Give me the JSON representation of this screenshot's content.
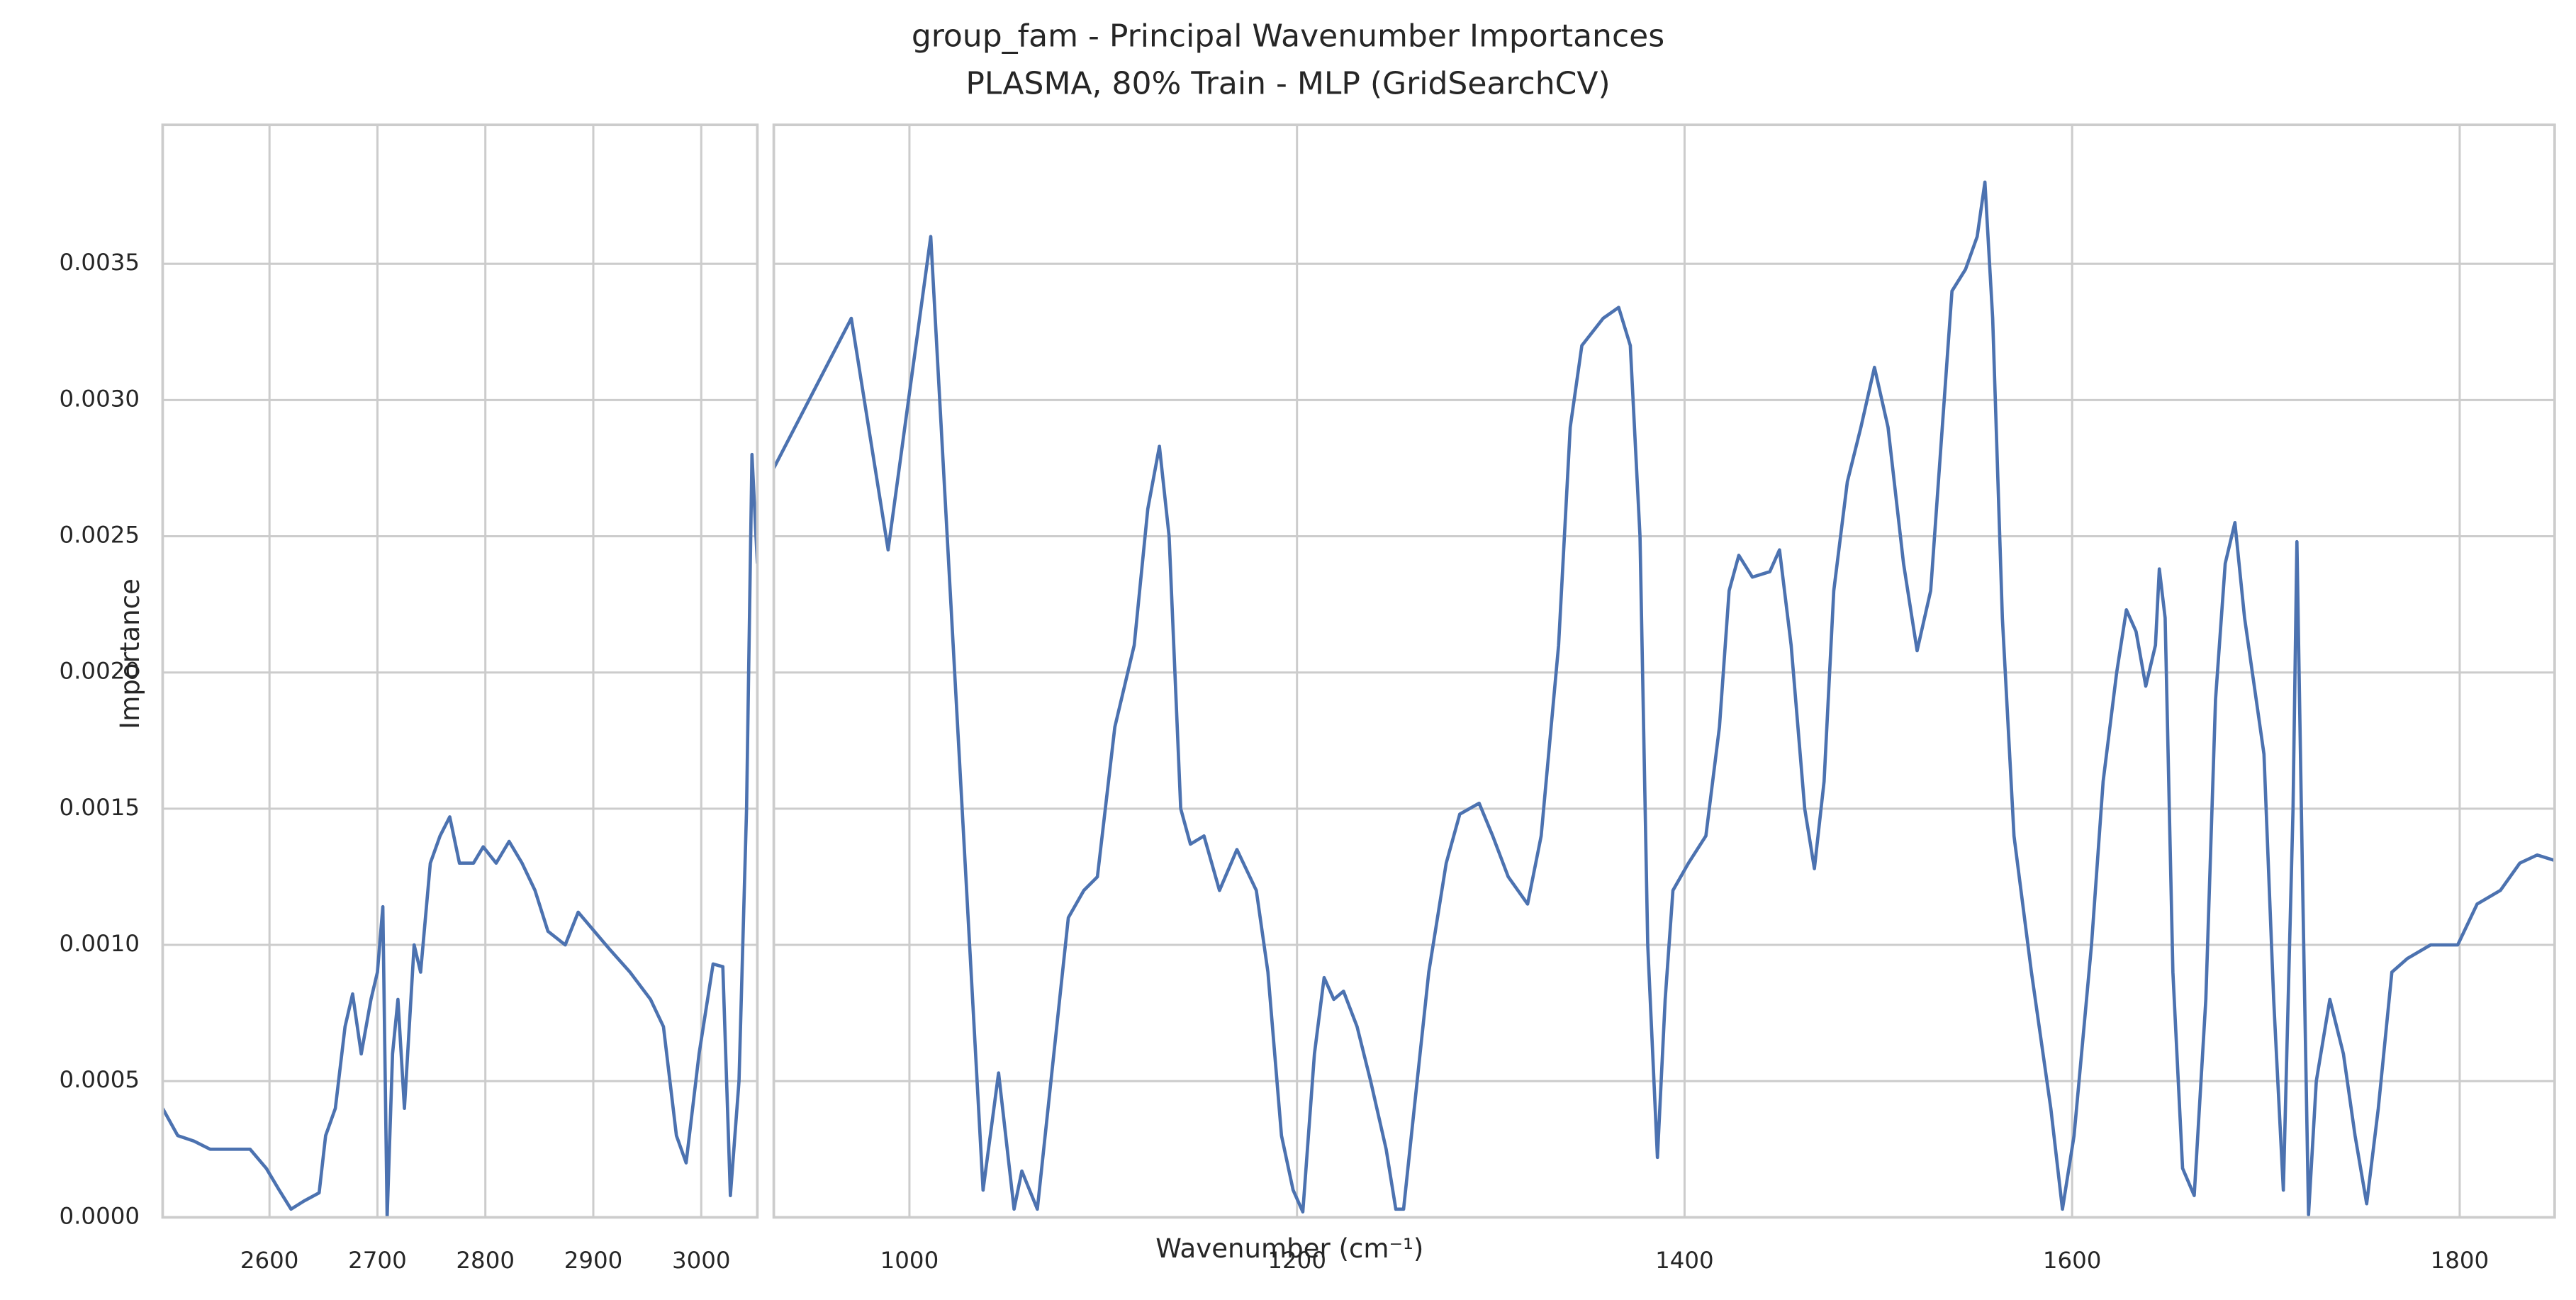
{
  "chart_data": [
    {
      "type": "line",
      "title": "group_fam - Principal Wavenumber Importances",
      "subtitle": "PLASMA, 80% Train - MLP (GridSearchCV)",
      "xlabel": "Wavenumber (cm⁻¹)",
      "ylabel": "Importance",
      "color": "#4c72b0",
      "grid": true,
      "xlim": [
        2501,
        3052
      ],
      "xticks": [
        2600,
        2700,
        2800,
        2900,
        3000
      ],
      "ylim": [
        0,
        0.00401
      ],
      "yticks": [
        {
          "value": 0,
          "label": "0.0000"
        },
        0.0005,
        {
          "value": 0.001,
          "label": "0.0010"
        },
        0.0015,
        {
          "value": 0.002,
          "label": "0.0020"
        },
        0.0025,
        {
          "value": 0.003,
          "label": "0.0030"
        },
        0.0035
      ],
      "x": [
        2501,
        2515,
        2530,
        2545,
        2563,
        2582,
        2597,
        2609,
        2620,
        2632,
        2646,
        2652,
        2661,
        2670,
        2677,
        2685,
        2694,
        2700,
        2705,
        2709,
        2714,
        2719,
        2725,
        2734,
        2740,
        2749,
        2758,
        2767,
        2776,
        2789,
        2798,
        2810,
        2822,
        2834,
        2846,
        2858,
        2874,
        2886,
        2901,
        2916,
        2934,
        2953,
        2965,
        2977,
        2986,
        2998,
        3011,
        3020,
        3027,
        3035,
        3042,
        3047,
        3052
      ],
      "values": [
        0.0004,
        0.0003,
        0.00028,
        0.00025,
        0.00025,
        0.00025,
        0.00018,
        0.0001,
        3e-05,
        6e-05,
        9e-05,
        0.0003,
        0.0004,
        0.0007,
        0.00082,
        0.0006,
        0.0008,
        0.0009,
        0.00114,
        0.0,
        0.0006,
        0.0008,
        0.0004,
        0.001,
        0.0009,
        0.0013,
        0.0014,
        0.00147,
        0.0013,
        0.0013,
        0.00136,
        0.0013,
        0.00138,
        0.0013,
        0.0012,
        0.00105,
        0.001,
        0.00112,
        0.00105,
        0.00098,
        0.0009,
        0.0008,
        0.0007,
        0.0003,
        0.0002,
        0.0006,
        0.00093,
        0.00092,
        8e-05,
        0.0005,
        0.0015,
        0.0028,
        0.0024
      ]
    },
    {
      "type": "line",
      "color": "#4c72b0",
      "xlim": [
        930,
        1849
      ],
      "xticks": [
        1000,
        1200,
        1400,
        1600,
        1800
      ],
      "x": [
        930,
        970,
        989,
        1011,
        1038,
        1046,
        1054,
        1058,
        1066,
        1082,
        1090,
        1097,
        1106,
        1116,
        1123,
        1129,
        1134,
        1140,
        1145,
        1152,
        1160,
        1169,
        1179,
        1185,
        1192,
        1198,
        1203,
        1209,
        1214,
        1219,
        1224,
        1231,
        1238,
        1246,
        1251,
        1255,
        1262,
        1268,
        1277,
        1284,
        1294,
        1301,
        1309,
        1319,
        1326,
        1335,
        1341,
        1347,
        1358,
        1366,
        1372,
        1377,
        1381,
        1386,
        1390,
        1394,
        1402,
        1411,
        1418,
        1423,
        1428,
        1435,
        1444,
        1449,
        1455,
        1462,
        1467,
        1472,
        1477,
        1484,
        1491,
        1498,
        1505,
        1513,
        1520,
        1527,
        1533,
        1538,
        1545,
        1551,
        1555,
        1559,
        1564,
        1570,
        1579,
        1589,
        1595,
        1601,
        1610,
        1616,
        1623,
        1628,
        1633,
        1638,
        1643,
        1645,
        1648,
        1652,
        1657,
        1663,
        1669,
        1674,
        1679,
        1684,
        1689,
        1694,
        1699,
        1704,
        1709,
        1714,
        1716,
        1719,
        1722,
        1726,
        1733,
        1740,
        1746,
        1752,
        1758,
        1765,
        1773,
        1785,
        1799,
        1809,
        1821,
        1831,
        1840,
        1849
      ],
      "values": [
        0.00275,
        0.0033,
        0.00245,
        0.0036,
        0.0001,
        0.00053,
        3e-05,
        0.00017,
        3e-05,
        0.0011,
        0.0012,
        0.00125,
        0.0018,
        0.0021,
        0.0026,
        0.00283,
        0.0025,
        0.0015,
        0.00137,
        0.0014,
        0.0012,
        0.00135,
        0.0012,
        0.0009,
        0.0003,
        0.0001,
        2e-05,
        0.0006,
        0.00088,
        0.0008,
        0.00083,
        0.0007,
        0.0005,
        0.00025,
        3e-05,
        3e-05,
        0.0005,
        0.0009,
        0.0013,
        0.00148,
        0.00152,
        0.0014,
        0.00125,
        0.00115,
        0.0014,
        0.0021,
        0.0029,
        0.0032,
        0.0033,
        0.00334,
        0.0032,
        0.0025,
        0.001,
        0.00022,
        0.0008,
        0.0012,
        0.0013,
        0.0014,
        0.0018,
        0.0023,
        0.00243,
        0.00235,
        0.00237,
        0.00245,
        0.0021,
        0.0015,
        0.00128,
        0.0016,
        0.0023,
        0.0027,
        0.0029,
        0.00312,
        0.0029,
        0.0024,
        0.00208,
        0.0023,
        0.0029,
        0.0034,
        0.00348,
        0.0036,
        0.0038,
        0.0033,
        0.0022,
        0.0014,
        0.0009,
        0.0004,
        3e-05,
        0.0003,
        0.001,
        0.0016,
        0.002,
        0.00223,
        0.00215,
        0.00195,
        0.0021,
        0.00238,
        0.0022,
        0.0009,
        0.00018,
        8e-05,
        0.0008,
        0.0019,
        0.0024,
        0.00255,
        0.0022,
        0.00195,
        0.0017,
        0.0008,
        0.0001,
        0.0015,
        0.00248,
        0.0012,
        1e-05,
        0.0005,
        0.0008,
        0.0006,
        0.0003,
        5e-05,
        0.0004,
        0.0009,
        0.00095,
        0.001,
        0.001,
        0.00115,
        0.0012,
        0.0013,
        0.00133,
        0.00131
      ]
    }
  ]
}
